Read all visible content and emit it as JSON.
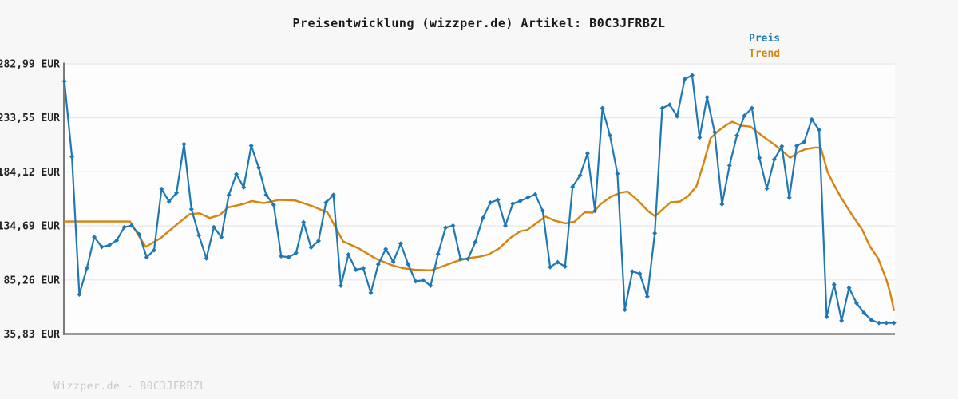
{
  "title": "Preisentwicklung (wizzper.de) Artikel: B0C3JFRBZL",
  "legend": {
    "price_label": "Preis",
    "trend_label": "Trend"
  },
  "watermark": "Wizzper.de - B0C3JFRBZL",
  "colors": {
    "price": "#1f77b4",
    "trend": "#d9820e",
    "grid": "#e6e6e6",
    "axis": "#7b7b7b",
    "background": "#f7f7f7",
    "plot_background": "#fdfdfd",
    "tick_text": "#222222",
    "watermark_text": "#c9c9c9"
  },
  "chart_data": {
    "type": "line",
    "title": "Preisentwicklung (wizzper.de) Artikel: B0C3JFRBZL",
    "xlabel": "",
    "ylabel": "",
    "grid": true,
    "legend_position": "top-right",
    "ylim": [
      35.83,
      282.99
    ],
    "y_ticks": [
      "282,99 EUR",
      "233,55 EUR",
      "184,12 EUR",
      "134,69 EUR",
      "85,26 EUR",
      "35,83 EUR"
    ],
    "y_tick_values": [
      282.99,
      233.55,
      184.12,
      134.69,
      85.26,
      35.83
    ],
    "currency": "EUR",
    "series": [
      {
        "name": "Preis",
        "style": "line-with-diamond-markers",
        "values": [
          267,
          198,
          72,
          96,
          124.5,
          115.5,
          117,
          121.5,
          133.5,
          135,
          127,
          106,
          112.5,
          168.5,
          157,
          165,
          209.5,
          150,
          126,
          105,
          133.5,
          124.5,
          163,
          182,
          170,
          208,
          188,
          163,
          154,
          107,
          106,
          110,
          138,
          115,
          121,
          156,
          163,
          80,
          108.5,
          94.5,
          96,
          73.5,
          99.5,
          113.5,
          102,
          118.5,
          99.5,
          84,
          85,
          80,
          109,
          133,
          135,
          104.5,
          104.5,
          120,
          142,
          156,
          158.5,
          135,
          155,
          157.5,
          160.5,
          163.5,
          148.5,
          97,
          101.5,
          97.5,
          170.5,
          181,
          201,
          148.5,
          242.5,
          217.5,
          182.5,
          58,
          93,
          91,
          70,
          128,
          242.5,
          245.5,
          235,
          269,
          272.5,
          215.5,
          252.5,
          220.5,
          154.5,
          190,
          217.5,
          235.5,
          242.5,
          197,
          169,
          195.5,
          207.5,
          160.5,
          208,
          211.5,
          232,
          222.5,
          51.5,
          81,
          48,
          78,
          64,
          55,
          48.5,
          46,
          46,
          46
        ]
      },
      {
        "name": "Trend",
        "style": "smooth-line",
        "anchors": [
          [
            0.0,
            138.7
          ],
          [
            0.079,
            138.7
          ],
          [
            0.098,
            115.5
          ],
          [
            0.116,
            123.5
          ],
          [
            0.133,
            134.5
          ],
          [
            0.151,
            145.5
          ],
          [
            0.163,
            146.2
          ],
          [
            0.175,
            142
          ],
          [
            0.187,
            144.5
          ],
          [
            0.197,
            151.5
          ],
          [
            0.216,
            154.8
          ],
          [
            0.226,
            157.5
          ],
          [
            0.24,
            155.5
          ],
          [
            0.259,
            158.5
          ],
          [
            0.278,
            158
          ],
          [
            0.298,
            153
          ],
          [
            0.317,
            147
          ],
          [
            0.336,
            120.5
          ],
          [
            0.355,
            114
          ],
          [
            0.375,
            105
          ],
          [
            0.394,
            99
          ],
          [
            0.408,
            96
          ],
          [
            0.423,
            94.5
          ],
          [
            0.442,
            94
          ],
          [
            0.457,
            98
          ],
          [
            0.471,
            102
          ],
          [
            0.485,
            105
          ],
          [
            0.5,
            106.5
          ],
          [
            0.511,
            108.5
          ],
          [
            0.524,
            114
          ],
          [
            0.538,
            124
          ],
          [
            0.55,
            130
          ],
          [
            0.558,
            131
          ],
          [
            0.567,
            136
          ],
          [
            0.58,
            143.3
          ],
          [
            0.591,
            139.5
          ],
          [
            0.604,
            137
          ],
          [
            0.615,
            138.6
          ],
          [
            0.627,
            147
          ],
          [
            0.637,
            146.8
          ],
          [
            0.647,
            155
          ],
          [
            0.659,
            161.5
          ],
          [
            0.671,
            165.2
          ],
          [
            0.679,
            166.2
          ],
          [
            0.692,
            157.5
          ],
          [
            0.704,
            148
          ],
          [
            0.712,
            143.5
          ],
          [
            0.723,
            151
          ],
          [
            0.731,
            156.4
          ],
          [
            0.742,
            157
          ],
          [
            0.752,
            162
          ],
          [
            0.762,
            171
          ],
          [
            0.771,
            193
          ],
          [
            0.779,
            215
          ],
          [
            0.789,
            222
          ],
          [
            0.798,
            227
          ],
          [
            0.805,
            230
          ],
          [
            0.816,
            226.5
          ],
          [
            0.827,
            225.5
          ],
          [
            0.843,
            216
          ],
          [
            0.856,
            209
          ],
          [
            0.866,
            203
          ],
          [
            0.875,
            197
          ],
          [
            0.885,
            202.3
          ],
          [
            0.894,
            205
          ],
          [
            0.906,
            206.5
          ],
          [
            0.912,
            206
          ],
          [
            0.92,
            184
          ],
          [
            0.928,
            172
          ],
          [
            0.936,
            161
          ],
          [
            0.945,
            150
          ],
          [
            0.952,
            142
          ],
          [
            0.962,
            131
          ],
          [
            0.971,
            116
          ],
          [
            0.981,
            105
          ],
          [
            0.991,
            85.5
          ],
          [
            0.996,
            72
          ],
          [
            1.0,
            57.5
          ]
        ]
      }
    ]
  }
}
